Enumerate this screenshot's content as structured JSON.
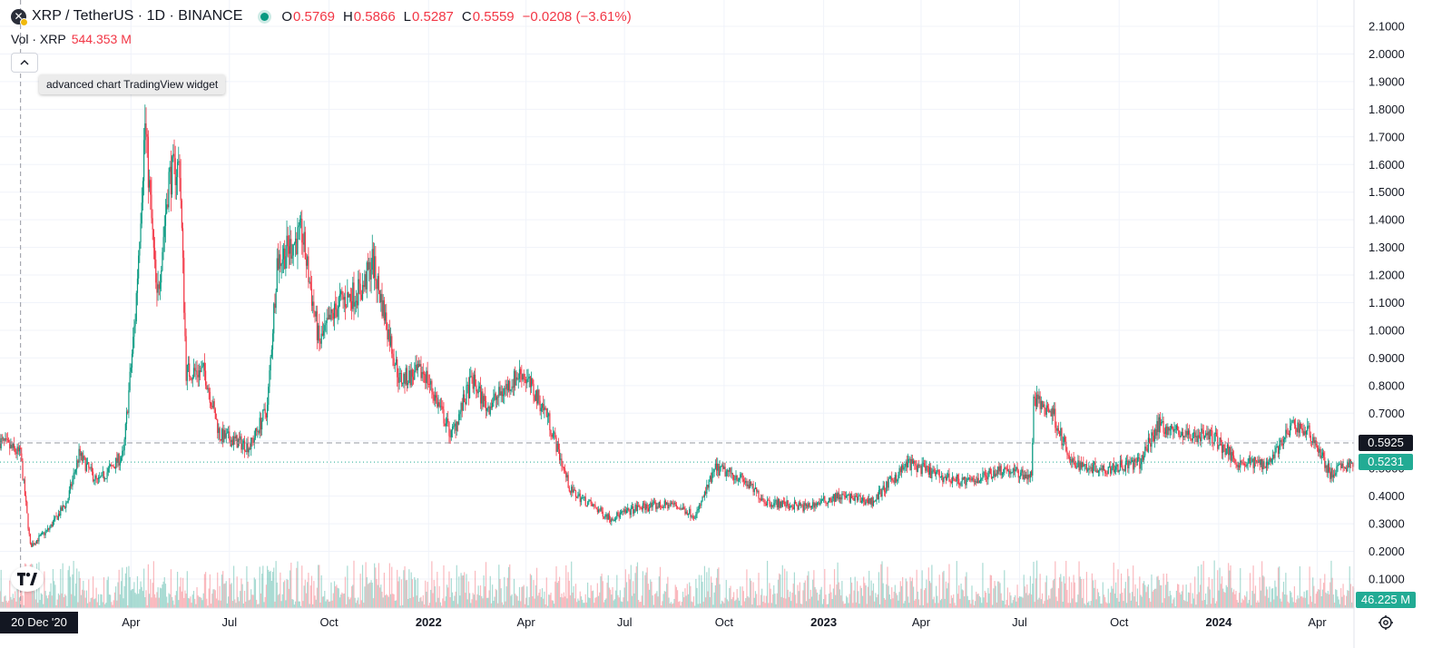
{
  "header": {
    "symbol": "XRP / TetherUS · 1D · BINANCE",
    "logo_glyph": "✕",
    "ohlc": {
      "open_key": "O",
      "open": "0.5769",
      "high_key": "H",
      "high": "0.5866",
      "low_key": "L",
      "low": "0.5287",
      "close_key": "C",
      "close": "0.5559",
      "change": "−0.0208 (−3.61%)"
    },
    "volume": {
      "label": "Vol · XRP",
      "value": "544.353 M"
    }
  },
  "tooltip": "advanced chart TradingView widget",
  "tags": {
    "price_dashed": "0.5925",
    "price_current": "0.5231",
    "volume_current": "46.225 M",
    "crosshair_date": "20 Dec '20"
  },
  "icons": {
    "collapse": "chevron-up-icon",
    "logo": "tradingview-logo-icon",
    "settings": "gear-icon",
    "symbol": "xrp-logo-icon"
  },
  "colors": {
    "up": "#089981",
    "down": "#f23645",
    "dashed_line": "#9598a1",
    "current_line": "#22ab94"
  },
  "chart_data": {
    "type": "candlestick",
    "y_axis": {
      "min": 0.15,
      "max": 2.1,
      "ticks": [
        "2.1000",
        "2.0000",
        "1.9000",
        "1.8000",
        "1.7000",
        "1.6000",
        "1.5000",
        "1.4000",
        "1.3000",
        "1.2000",
        "1.1000",
        "1.0000",
        "0.9000",
        "0.8000",
        "0.7000",
        "0.6000",
        "0.5000",
        "0.4000",
        "0.3000",
        "0.2000",
        "0.1000"
      ]
    },
    "x_axis": {
      "range": [
        "2020-12-01",
        "2024-05-05"
      ],
      "ticks": [
        {
          "label": "Apr",
          "date": "2021-04-01",
          "bold": false
        },
        {
          "label": "Jul",
          "date": "2021-07-01",
          "bold": false
        },
        {
          "label": "Oct",
          "date": "2021-10-01",
          "bold": false
        },
        {
          "label": "2022",
          "date": "2022-01-01",
          "bold": true
        },
        {
          "label": "Apr",
          "date": "2022-04-01",
          "bold": false
        },
        {
          "label": "Jul",
          "date": "2022-07-01",
          "bold": false
        },
        {
          "label": "Oct",
          "date": "2022-10-01",
          "bold": false
        },
        {
          "label": "2023",
          "date": "2023-01-01",
          "bold": true
        },
        {
          "label": "Apr",
          "date": "2023-04-01",
          "bold": false
        },
        {
          "label": "Jul",
          "date": "2023-07-01",
          "bold": false
        },
        {
          "label": "Oct",
          "date": "2023-10-01",
          "bold": false
        },
        {
          "label": "2024",
          "date": "2024-01-01",
          "bold": true
        },
        {
          "label": "Apr",
          "date": "2024-04-01",
          "bold": false
        }
      ]
    },
    "crosshair_date": "2020-12-20",
    "dashed_price": 0.5925,
    "current_price": 0.5231,
    "price_path": [
      [
        "2020-12-01",
        0.6
      ],
      [
        "2020-12-20",
        0.55
      ],
      [
        "2020-12-29",
        0.22
      ],
      [
        "2021-01-15",
        0.28
      ],
      [
        "2021-02-01",
        0.38
      ],
      [
        "2021-02-12",
        0.55
      ],
      [
        "2021-03-01",
        0.45
      ],
      [
        "2021-03-25",
        0.55
      ],
      [
        "2021-04-05",
        1.05
      ],
      [
        "2021-04-14",
        1.75
      ],
      [
        "2021-04-25",
        1.1
      ],
      [
        "2021-05-06",
        1.55
      ],
      [
        "2021-05-16",
        1.6
      ],
      [
        "2021-05-22",
        0.85
      ],
      [
        "2021-06-08",
        0.85
      ],
      [
        "2021-06-22",
        0.62
      ],
      [
        "2021-07-20",
        0.58
      ],
      [
        "2021-08-05",
        0.72
      ],
      [
        "2021-08-14",
        1.25
      ],
      [
        "2021-09-06",
        1.35
      ],
      [
        "2021-09-22",
        0.95
      ],
      [
        "2021-10-10",
        1.1
      ],
      [
        "2021-11-01",
        1.15
      ],
      [
        "2021-11-10",
        1.25
      ],
      [
        "2021-12-05",
        0.82
      ],
      [
        "2021-12-28",
        0.85
      ],
      [
        "2022-01-22",
        0.62
      ],
      [
        "2022-02-10",
        0.82
      ],
      [
        "2022-02-24",
        0.72
      ],
      [
        "2022-03-28",
        0.85
      ],
      [
        "2022-04-20",
        0.7
      ],
      [
        "2022-05-12",
        0.42
      ],
      [
        "2022-06-18",
        0.32
      ],
      [
        "2022-07-15",
        0.36
      ],
      [
        "2022-08-15",
        0.37
      ],
      [
        "2022-09-05",
        0.33
      ],
      [
        "2022-09-23",
        0.5
      ],
      [
        "2022-10-15",
        0.47
      ],
      [
        "2022-11-09",
        0.38
      ],
      [
        "2022-12-15",
        0.36
      ],
      [
        "2023-01-15",
        0.4
      ],
      [
        "2023-02-15",
        0.38
      ],
      [
        "2023-03-20",
        0.52
      ],
      [
        "2023-04-20",
        0.47
      ],
      [
        "2023-05-15",
        0.45
      ],
      [
        "2023-06-15",
        0.5
      ],
      [
        "2023-07-12",
        0.47
      ],
      [
        "2023-07-14",
        0.75
      ],
      [
        "2023-08-01",
        0.7
      ],
      [
        "2023-08-17",
        0.52
      ],
      [
        "2023-09-15",
        0.5
      ],
      [
        "2023-10-20",
        0.52
      ],
      [
        "2023-11-06",
        0.66
      ],
      [
        "2023-12-01",
        0.62
      ],
      [
        "2023-12-25",
        0.62
      ],
      [
        "2024-01-20",
        0.52
      ],
      [
        "2024-02-15",
        0.52
      ],
      [
        "2024-03-11",
        0.66
      ],
      [
        "2024-03-27",
        0.62
      ],
      [
        "2024-04-13",
        0.48
      ],
      [
        "2024-05-04",
        0.5231
      ]
    ],
    "volume_axis": {
      "max": 0.16
    }
  }
}
